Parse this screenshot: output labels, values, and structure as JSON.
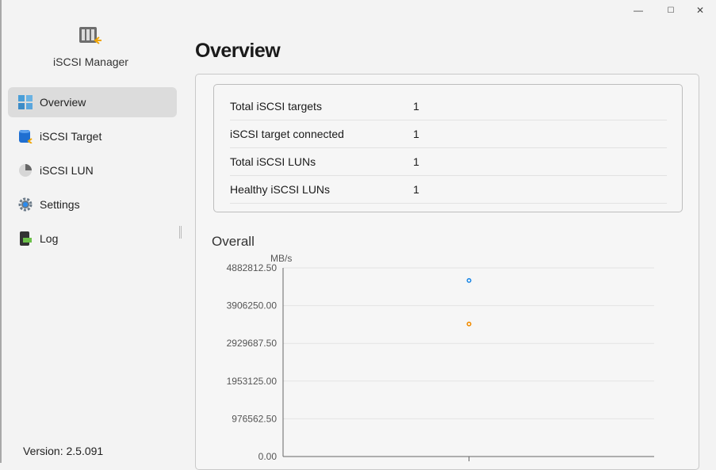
{
  "window": {
    "controls": {
      "minimize": "—",
      "maximize": "☐",
      "close": "✕"
    }
  },
  "sidebar": {
    "app_name": "iSCSI Manager",
    "items": [
      {
        "label": "Overview",
        "icon": "grid-icon",
        "active": true
      },
      {
        "label": "iSCSI Target",
        "icon": "database-icon"
      },
      {
        "label": "iSCSI LUN",
        "icon": "pie-disk-icon"
      },
      {
        "label": "Settings",
        "icon": "gear-icon"
      },
      {
        "label": "Log",
        "icon": "log-file-icon"
      }
    ],
    "version": "Version: 2.5.091"
  },
  "main": {
    "title": "Overview",
    "stats": [
      {
        "label": "Total iSCSI targets",
        "value": "1"
      },
      {
        "label": "iSCSI target connected",
        "value": "1"
      },
      {
        "label": "Total iSCSI LUNs",
        "value": "1"
      },
      {
        "label": "Healthy iSCSI LUNs",
        "value": "1"
      }
    ],
    "overall_label": "Overall"
  },
  "chart_data": {
    "type": "scatter",
    "ylabel": "MB/s",
    "ylim": [
      0,
      4882812.5
    ],
    "yticks": [
      "0.00",
      "976562.50",
      "1953125.00",
      "2929687.50",
      "3906250.00",
      "4882812.50"
    ],
    "grid": true,
    "series": [
      {
        "color": "#1e88e5",
        "values": [
          4556000
        ]
      },
      {
        "color": "#f08c00",
        "values": [
          3432000
        ]
      }
    ]
  }
}
